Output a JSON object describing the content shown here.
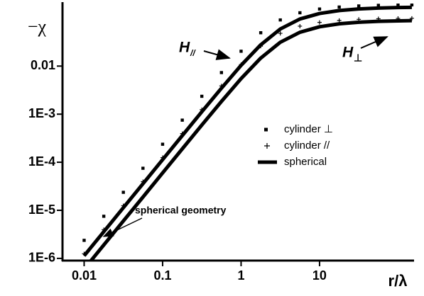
{
  "chart_data": {
    "type": "scatter-line",
    "x_label": "r/λ",
    "y_label": "−χ",
    "xscale": "log",
    "yscale": "log",
    "xlim": [
      0.0053,
      160
    ],
    "ylim": [
      9e-07,
      0.2
    ],
    "xticks": [
      0.01,
      0.1,
      1,
      10
    ],
    "yticks": [
      {
        "value": 1e-06,
        "label": "1E-6"
      },
      {
        "value": 1e-05,
        "label": "1E-5"
      },
      {
        "value": 0.0001,
        "label": "1E-4"
      },
      {
        "value": 0.001,
        "label": "1E-3"
      },
      0.01
    ],
    "x": [
      0.01,
      0.0178,
      0.0316,
      0.0562,
      0.1,
      0.178,
      0.316,
      0.562,
      1,
      1.78,
      3.16,
      5.62,
      10,
      17.8,
      31.6,
      56.2,
      100,
      150
    ],
    "series": [
      {
        "name": "cylinder ⊥",
        "marker": "square",
        "color": "#000000",
        "values": [
          2.375e-06,
          7.52e-06,
          2.37e-05,
          7.5e-05,
          0.000237,
          0.000751,
          0.002354,
          0.00733,
          0.02037,
          0.0494,
          0.0912,
          0.1286,
          0.1539,
          0.1693,
          0.1782,
          0.1834,
          0.1862,
          0.1875
        ]
      },
      {
        "name": "cylinder //",
        "marker": "plus",
        "color": "#000000",
        "values": [
          1.25e-06,
          3.96e-06,
          1.249e-05,
          3.947e-05,
          0.0001249,
          0.000395,
          0.001239,
          0.00386,
          0.01072,
          0.026,
          0.048,
          0.0677,
          0.081,
          0.0891,
          0.0938,
          0.0965,
          0.098,
          0.0987
        ]
      },
      {
        "name": "spherical",
        "marker": "line",
        "color": "#000000",
        "values": [
          1.133e-06,
          3.59e-06,
          1.132e-05,
          3.57e-05,
          0.0001132,
          0.000358,
          0.001122,
          0.00347,
          0.01037,
          0.0277,
          0.0591,
          0.0954,
          0.1241,
          0.143,
          0.1544,
          0.1611,
          0.165,
          0.1666
        ]
      },
      {
        "marker": "line",
        "color": "#000000",
        "values": [
          6e-07,
          1.9e-06,
          6e-06,
          1.89e-05,
          5.99e-05,
          0.0001895,
          0.000594,
          0.00184,
          0.00549,
          0.01467,
          0.0313,
          0.0505,
          0.0657,
          0.0757,
          0.0817,
          0.0853,
          0.0873,
          0.0882
        ]
      }
    ],
    "annotations": [
      {
        "text": "H",
        "sub": "//"
      },
      {
        "text": "H",
        "sub": "⊥"
      },
      {
        "text": "spherical geometry"
      }
    ]
  }
}
